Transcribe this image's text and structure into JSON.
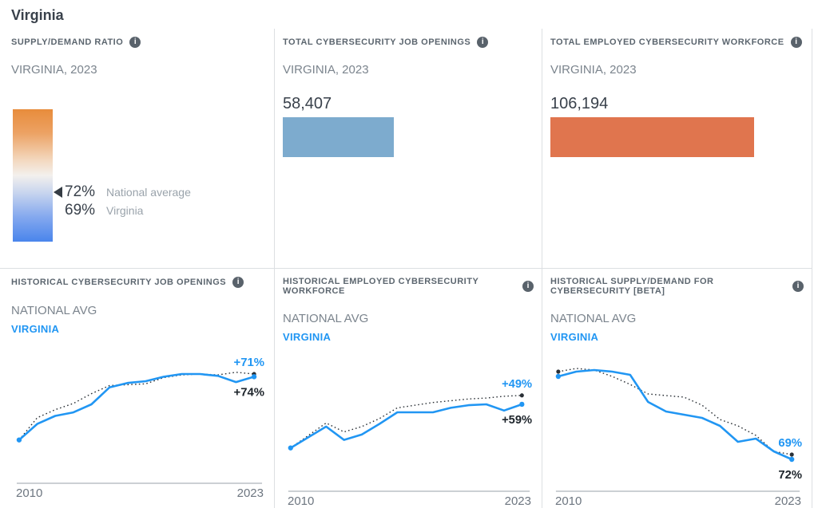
{
  "page_title": "Virginia",
  "icons": {
    "info": "i"
  },
  "colors": {
    "accent_blue": "#2196f3",
    "bar_blue": "#7dabce",
    "bar_orange": "#e0754e",
    "national_line": "#2a3036",
    "gradient_top_orange": "#e88c3b",
    "gradient_bottom_blue": "#4a85ec",
    "axis_line": "#9aa2a9",
    "label_black": "#1d242b"
  },
  "panels": {
    "supply_demand": {
      "header": "SUPPLY/DEMAND RATIO",
      "subtitle": "VIRGINIA, 2023",
      "national_value": "72%",
      "national_label": "National average",
      "state_value": "69%",
      "state_label": "Virginia"
    },
    "total_openings": {
      "header": "TOTAL CYBERSECURITY JOB OPENINGS",
      "subtitle": "VIRGINIA, 2023",
      "value": "58,407"
    },
    "total_workforce": {
      "header": "TOTAL EMPLOYED CYBERSECURITY WORKFORCE",
      "subtitle": "VIRGINIA, 2023",
      "value": "106,194"
    },
    "hist_openings": {
      "header": "HISTORICAL CYBERSECURITY JOB OPENINGS",
      "legend_national": "NATIONAL AVG",
      "legend_state": "VIRGINIA",
      "x_first": "2010",
      "x_last": "2023",
      "state_end_label": "+71%",
      "national_end_label": "+74%"
    },
    "hist_workforce": {
      "header": "HISTORICAL EMPLOYED CYBERSECURITY WORKFORCE",
      "legend_national": "NATIONAL AVG",
      "legend_state": "VIRGINIA",
      "x_first": "2010",
      "x_last": "2023",
      "state_end_label": "+49%",
      "national_end_label": "+59%"
    },
    "hist_supply": {
      "header": "HISTORICAL SUPPLY/DEMAND FOR CYBERSECURITY [BETA]",
      "legend_national": "NATIONAL AVG",
      "legend_state": "VIRGINIA",
      "x_first": "2010",
      "x_last": "2023",
      "state_end_label": "69%",
      "national_end_label": "72%"
    }
  },
  "chart_data": [
    {
      "id": "supply-demand-ratio",
      "type": "gauge",
      "title": "Supply/Demand Ratio",
      "region": "Virginia, 2023",
      "unit": "%",
      "national_average": 72,
      "virginia": 69,
      "scale": "orange (high supply) at top to blue (low supply) at bottom"
    },
    {
      "id": "total-openings",
      "type": "bar",
      "title": "Total Cybersecurity Job Openings",
      "region": "Virginia, 2023",
      "value": 58407,
      "xlim": [
        0,
        132000
      ]
    },
    {
      "id": "total-workforce",
      "type": "bar",
      "title": "Total Employed Cybersecurity Workforce",
      "region": "Virginia, 2023",
      "value": 106194,
      "xlim": [
        0,
        132000
      ]
    },
    {
      "id": "historical-job-openings",
      "type": "line",
      "title": "Historical Cybersecurity Job Openings",
      "x": [
        2010,
        2011,
        2012,
        2013,
        2014,
        2015,
        2016,
        2017,
        2018,
        2019,
        2020,
        2021,
        2022,
        2023
      ],
      "xticks": [
        "2010",
        "2023"
      ],
      "ylim": [
        -20,
        100
      ],
      "series": [
        {
          "name": "National avg",
          "style": "dotted-black",
          "end_label": "+74%",
          "values": [
            0,
            25,
            34,
            41,
            52,
            61,
            62,
            63,
            70,
            73,
            74,
            73,
            76,
            74
          ]
        },
        {
          "name": "Virginia",
          "style": "solid-blue",
          "end_label": "+71%",
          "values": [
            0,
            18,
            27,
            31,
            40,
            59,
            64,
            66,
            71,
            74,
            74,
            72,
            65,
            71
          ]
        }
      ]
    },
    {
      "id": "historical-workforce",
      "type": "line",
      "title": "Historical Employed Cybersecurity Workforce",
      "x": [
        2010,
        2011,
        2012,
        2013,
        2014,
        2015,
        2016,
        2017,
        2018,
        2019,
        2020,
        2021,
        2022,
        2023
      ],
      "xticks": [
        "2010",
        "2023"
      ],
      "ylim": [
        -20,
        100
      ],
      "series": [
        {
          "name": "National avg",
          "style": "dotted-black",
          "end_label": "+59%",
          "values": [
            0,
            14,
            28,
            18,
            24,
            33,
            45,
            48,
            51,
            53,
            55,
            56,
            58,
            59
          ]
        },
        {
          "name": "Virginia",
          "style": "solid-blue",
          "end_label": "+49%",
          "values": [
            0,
            12,
            24,
            9,
            15,
            27,
            40,
            40,
            40,
            45,
            48,
            49,
            42,
            49
          ]
        }
      ]
    },
    {
      "id": "historical-supply-demand",
      "type": "line",
      "title": "Historical Supply/Demand for Cybersecurity [Beta]",
      "x": [
        2010,
        2011,
        2012,
        2013,
        2014,
        2015,
        2016,
        2017,
        2018,
        2019,
        2020,
        2021,
        2022,
        2023
      ],
      "xticks": [
        "2010",
        "2023"
      ],
      "ylim": [
        65,
        132
      ],
      "series": [
        {
          "name": "National avg",
          "style": "dotted-black",
          "end_label": "72%",
          "values": [
            124,
            126,
            125,
            121,
            116,
            110,
            109,
            108,
            103,
            94,
            90,
            84,
            74,
            72
          ]
        },
        {
          "name": "Virginia",
          "style": "solid-blue",
          "end_label": "69%",
          "values": [
            121,
            124,
            125,
            124,
            122,
            105,
            99,
            97,
            95,
            90,
            80,
            82,
            74,
            69
          ]
        }
      ]
    }
  ]
}
